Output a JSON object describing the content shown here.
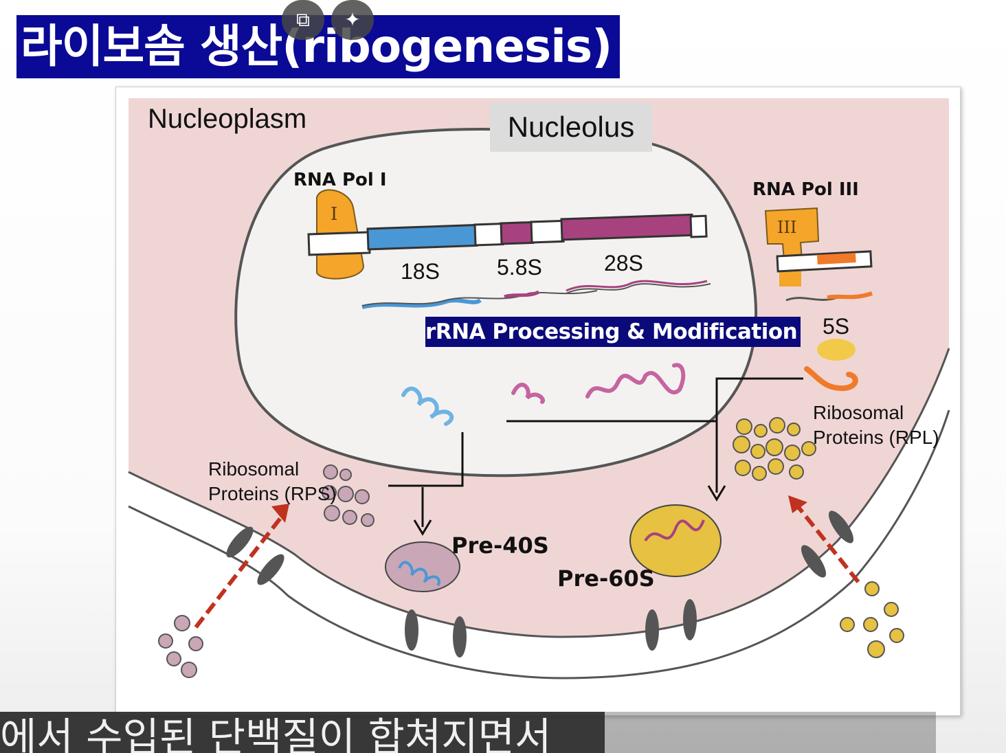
{
  "title": "라이보솜 생산(ribogenesis)",
  "overlay": {
    "open_icon": "external-link-icon",
    "sparkle_icon": "sparkle-icon"
  },
  "diagram": {
    "nucleoplasm": "Nucleoplasm",
    "nucleolus": "Nucleolus",
    "rna_pol_1": "RNA Pol I",
    "rna_pol_1_glyph": "I",
    "rna_pol_3": "RNA Pol III",
    "rna_pol_3_glyph": "III",
    "s18": "18S",
    "s58": "5.8S",
    "s28": "28S",
    "s5": "5S",
    "processing": "rRNA Processing & Modification",
    "rpl_1": "Ribosomal",
    "rpl_2": "Proteins (RPL)",
    "rps_1": "Ribosomal",
    "rps_2": "Proteins (RPS)",
    "pre40": "Pre-40S",
    "pre60": "Pre-60S"
  },
  "subtitle": "에서 수입된 단백질이 합쳐지면서",
  "colors": {
    "title_bg": "#0a0a96",
    "nucleoplasm": "#efd6d5",
    "orange": "#f4a52a",
    "blue": "#4a97d6",
    "purple": "#a8427f",
    "yellow": "#e6c142",
    "arrow_red": "#c0321f"
  }
}
